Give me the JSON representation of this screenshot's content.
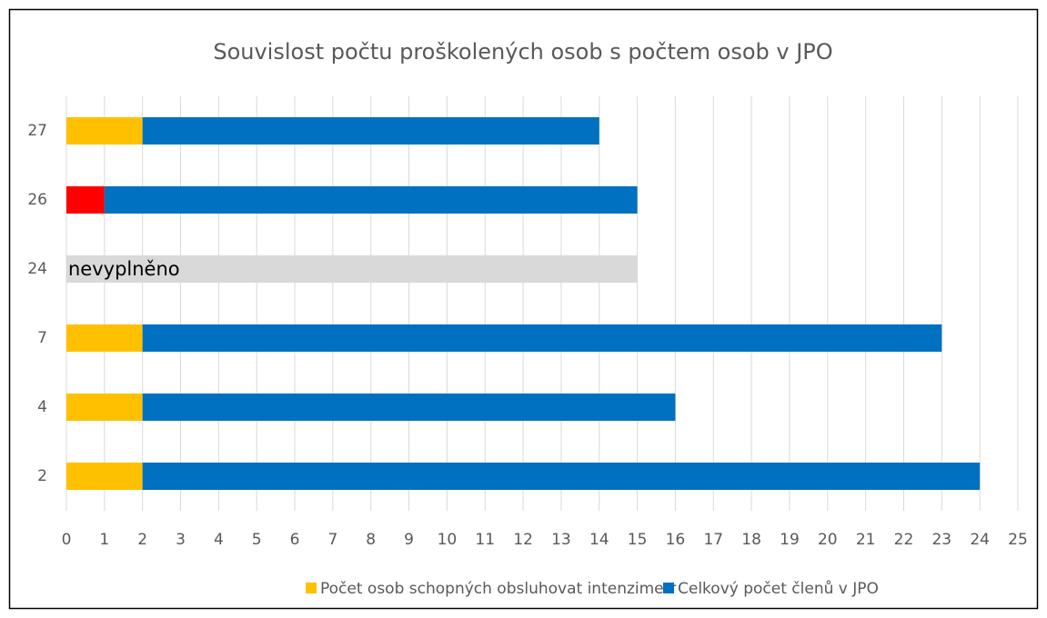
{
  "chart_data": {
    "type": "stacked_bar_horizontal",
    "title": "Souvislost počtu proškolených osob s počtem osob v JPO",
    "categories": [
      "27",
      "26",
      "24",
      "7",
      "4",
      "2"
    ],
    "series": [
      {
        "name": "Počet osob schopných obsluhovat intenzimetr",
        "color": "#ffc000",
        "colors": [
          "#ffc000",
          "#ff0000",
          "#ffc000",
          "#ffc000",
          "#ffc000",
          "#ffc000"
        ],
        "values": [
          2,
          1,
          null,
          2,
          2,
          2
        ]
      },
      {
        "name": "Celkový počet členů v JPO",
        "color": "#0070c0",
        "values": [
          12,
          14,
          null,
          21,
          14,
          22
        ]
      }
    ],
    "unfilled": {
      "label": "nevyplněno",
      "value": 15,
      "color": "#d9d9d9"
    },
    "xlim": [
      0,
      25
    ],
    "xticks": [
      0,
      1,
      2,
      3,
      4,
      5,
      6,
      7,
      8,
      9,
      10,
      11,
      12,
      13,
      14,
      15,
      16,
      17,
      18,
      19,
      20,
      21,
      22,
      23,
      24,
      25
    ],
    "grid": true,
    "legend": "bottom"
  }
}
